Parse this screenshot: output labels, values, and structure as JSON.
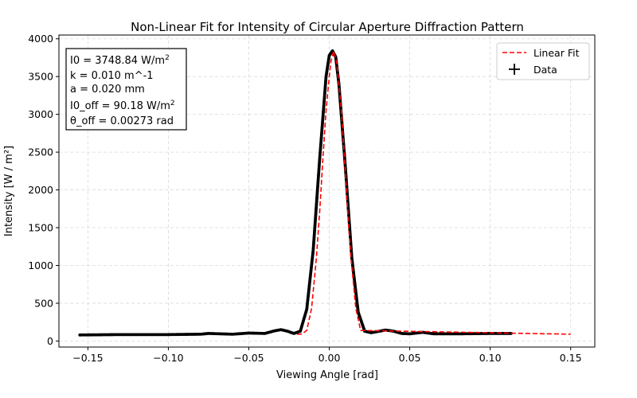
{
  "chart_data": {
    "type": "line",
    "title": "Non-Linear Fit for Intensity of Circular Aperture Diffraction Pattern",
    "xlabel": "Viewing Angle [rad]",
    "ylabel": "Intensity [W / m²]",
    "xlim": [
      -0.168,
      0.165
    ],
    "ylim": [
      -80,
      4050
    ],
    "xticks": [
      -0.15,
      -0.1,
      -0.05,
      0.0,
      0.05,
      0.1,
      0.15
    ],
    "xtick_labels": [
      "−0.15",
      "−0.10",
      "−0.05",
      "0.00",
      "0.05",
      "0.10",
      "0.15"
    ],
    "yticks": [
      0,
      500,
      1000,
      1500,
      2000,
      2500,
      3000,
      3500,
      4000
    ],
    "ytick_labels": [
      "0",
      "500",
      "1000",
      "1500",
      "2000",
      "2500",
      "3000",
      "3500",
      "4000"
    ],
    "grid": true,
    "legend_position": "top-right",
    "series": [
      {
        "name": "Linear Fit",
        "style": "dashed",
        "color": "#ff0000",
        "x": [
          -0.02,
          -0.017,
          -0.014,
          -0.011,
          -0.008,
          -0.006,
          -0.004,
          -0.002,
          0.0,
          0.001,
          0.00273,
          0.0045,
          0.0055,
          0.0075,
          0.0095,
          0.0115,
          0.0135,
          0.0165,
          0.0195,
          0.15
        ],
        "y": [
          90,
          92,
          140,
          430,
          1100,
          1700,
          2400,
          3050,
          3500,
          3700,
          3839,
          3700,
          3500,
          3050,
          2400,
          1700,
          1100,
          430,
          140,
          90
        ]
      },
      {
        "name": "Data",
        "style": "markers",
        "color": "#000000",
        "x": [
          -0.155,
          -0.13,
          -0.1,
          -0.08,
          -0.075,
          -0.06,
          -0.05,
          -0.04,
          -0.034,
          -0.03,
          -0.026,
          -0.022,
          -0.018,
          -0.014,
          -0.01,
          -0.006,
          -0.002,
          0.0,
          0.002,
          0.004,
          0.006,
          0.01,
          0.014,
          0.018,
          0.022,
          0.026,
          0.03,
          0.035,
          0.04,
          0.045,
          0.05,
          0.058,
          0.065,
          0.08,
          0.1,
          0.113
        ],
        "y": [
          80,
          85,
          85,
          90,
          100,
          90,
          105,
          100,
          135,
          150,
          130,
          100,
          130,
          420,
          1200,
          2400,
          3500,
          3780,
          3840,
          3760,
          3400,
          2300,
          1100,
          380,
          130,
          110,
          125,
          145,
          130,
          100,
          95,
          115,
          95,
          95,
          100,
          100
        ]
      }
    ],
    "annotation": {
      "lines": [
        {
          "text": "I0 = 3748.84 W/m",
          "sup": "2"
        },
        {
          "text": "k = 0.010 m^-1",
          "sup": ""
        },
        {
          "text": "a = 0.020 mm",
          "sup": ""
        },
        {
          "text": "I0_off = 90.18 W/m",
          "sup": "2"
        },
        {
          "text": "θ_off = 0.00273 rad",
          "sup": ""
        }
      ]
    }
  }
}
